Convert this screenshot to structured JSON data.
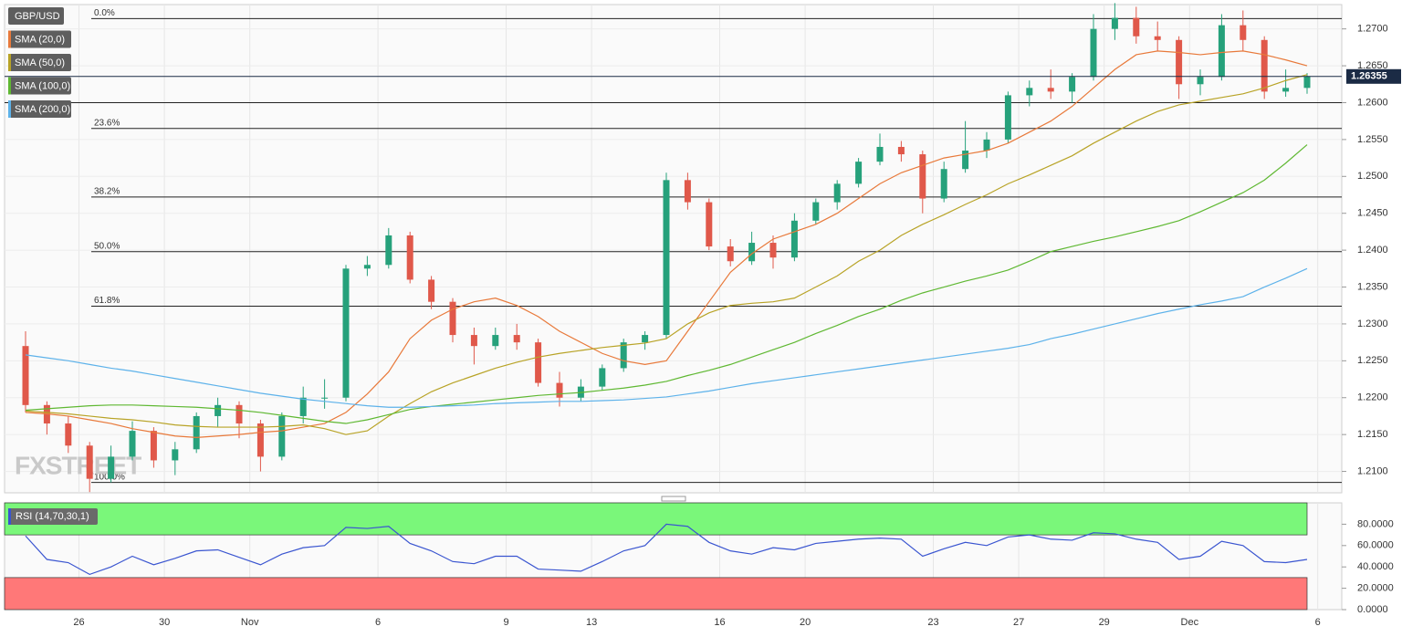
{
  "chart_data": [
    {
      "type": "candlestick",
      "title": "GBP/USD",
      "watermark": "FXSTREET",
      "categories": [
        null,
        null,
        null,
        "26",
        null,
        null,
        null,
        "30",
        null,
        null,
        null,
        "Nov",
        null,
        null,
        null,
        null,
        null,
        "6",
        null,
        null,
        null,
        null,
        null,
        "9",
        null,
        null,
        null,
        "13",
        null,
        null,
        null,
        null,
        null,
        "16",
        null,
        null,
        null,
        "20",
        null,
        null,
        null,
        null,
        null,
        "23",
        null,
        null,
        null,
        "27",
        null,
        null,
        null,
        "29",
        null,
        null,
        null,
        "Dec",
        null,
        null,
        null,
        null,
        null,
        "6"
      ],
      "open": [
        1.227,
        1.219,
        1.2165,
        1.2135,
        1.209,
        1.212,
        1.2155,
        1.2115,
        1.213,
        1.2175,
        1.219,
        1.2165,
        1.212,
        1.2175,
        1.22,
        1.22,
        1.2375,
        1.238,
        1.242,
        1.236,
        1.233,
        1.2285,
        1.227,
        1.2285,
        1.2275,
        1.222,
        1.22,
        1.2215,
        1.224,
        1.2275,
        1.2285,
        1.2495,
        1.2465,
        1.2405,
        1.2385,
        1.241,
        1.239,
        1.244,
        1.2465,
        1.249,
        1.252,
        1.254,
        1.253,
        1.247,
        1.251,
        1.2535,
        1.255,
        1.261,
        1.262,
        1.2615,
        1.2635,
        1.27,
        1.2715,
        1.269,
        1.2685,
        1.2625,
        1.2635,
        1.2705,
        1.2685,
        1.2615,
        1.262,
        null
      ],
      "high": [
        1.229,
        1.2195,
        1.2175,
        1.214,
        1.2135,
        1.2168,
        1.216,
        1.214,
        1.218,
        1.22,
        1.2195,
        1.217,
        1.218,
        1.2215,
        1.2225,
        1.238,
        1.2392,
        1.243,
        1.2425,
        1.2365,
        1.2335,
        1.2295,
        1.2295,
        1.23,
        1.228,
        1.2235,
        1.2225,
        1.2245,
        1.228,
        1.229,
        1.2505,
        1.2505,
        1.247,
        1.2415,
        1.2425,
        1.242,
        1.245,
        1.247,
        1.2495,
        1.2525,
        1.2558,
        1.2548,
        1.2535,
        1.252,
        1.2575,
        1.256,
        1.2615,
        1.263,
        1.2645,
        1.264,
        1.272,
        1.2735,
        1.273,
        1.271,
        1.269,
        1.2645,
        1.272,
        1.2725,
        1.269,
        1.2645,
        1.264,
        null
      ],
      "low": [
        1.218,
        1.215,
        1.2125,
        1.2072,
        1.2085,
        1.2115,
        1.2105,
        1.2095,
        1.2125,
        1.216,
        1.2145,
        1.21,
        1.2115,
        1.2165,
        1.2185,
        1.2195,
        1.2365,
        1.2375,
        1.2355,
        1.232,
        1.2275,
        1.2245,
        1.2265,
        1.2265,
        1.2215,
        1.2188,
        1.2195,
        1.221,
        1.2235,
        1.2265,
        1.228,
        1.2455,
        1.24,
        1.2378,
        1.238,
        1.2375,
        1.2385,
        1.2435,
        1.2455,
        1.2485,
        1.2515,
        1.252,
        1.245,
        1.2465,
        1.2505,
        1.2525,
        1.2545,
        1.2595,
        1.2605,
        1.26,
        1.263,
        1.2685,
        1.268,
        1.267,
        1.2605,
        1.261,
        1.263,
        1.267,
        1.2605,
        1.2608,
        1.2612,
        null
      ],
      "close": [
        1.219,
        1.2165,
        1.2135,
        1.209,
        1.212,
        1.2155,
        1.2115,
        1.213,
        1.2175,
        1.219,
        1.2165,
        1.212,
        1.2175,
        1.22,
        1.22,
        1.2375,
        1.238,
        1.242,
        1.236,
        1.233,
        1.2285,
        1.227,
        1.2285,
        1.2275,
        1.222,
        1.22,
        1.2215,
        1.224,
        1.2275,
        1.2285,
        1.2495,
        1.2465,
        1.2405,
        1.2385,
        1.241,
        1.239,
        1.244,
        1.2465,
        1.249,
        1.252,
        1.254,
        1.253,
        1.247,
        1.251,
        1.2535,
        1.255,
        1.261,
        1.262,
        1.2615,
        1.2635,
        1.27,
        1.2715,
        1.269,
        1.2685,
        1.2625,
        1.2635,
        1.2705,
        1.2685,
        1.2615,
        1.262,
        1.26355,
        null
      ],
      "up_color": "#26a17b",
      "down_color": "#e0584a",
      "series": [
        {
          "name": "SMA (20,0)",
          "color": "#e8793a",
          "values": [
            1.218,
            1.2178,
            1.2175,
            1.217,
            1.2165,
            1.2158,
            1.2153,
            1.2148,
            1.2146,
            1.2148,
            1.215,
            1.2153,
            1.2155,
            1.216,
            1.2165,
            1.218,
            1.2205,
            1.2235,
            1.228,
            1.2305,
            1.232,
            1.233,
            1.2335,
            1.2325,
            1.231,
            1.229,
            1.2275,
            1.226,
            1.225,
            1.2245,
            1.225,
            1.229,
            1.233,
            1.237,
            1.2395,
            1.2415,
            1.2425,
            1.2435,
            1.245,
            1.247,
            1.249,
            1.2505,
            1.2515,
            1.2525,
            1.253,
            1.2535,
            1.2545,
            1.256,
            1.2575,
            1.2595,
            1.262,
            1.2645,
            1.2665,
            1.267,
            1.2668,
            1.2665,
            1.2668,
            1.267,
            1.2665,
            1.2658,
            1.265,
            null
          ]
        },
        {
          "name": "SMA (50,0)",
          "color": "#b8a326",
          "values": [
            1.2182,
            1.218,
            1.2178,
            1.2175,
            1.2172,
            1.217,
            1.2167,
            1.2163,
            1.2161,
            1.216,
            1.216,
            1.216,
            1.2161,
            1.2163,
            1.2158,
            1.215,
            1.2155,
            1.2175,
            1.2192,
            1.2208,
            1.222,
            1.223,
            1.224,
            1.2248,
            1.2255,
            1.226,
            1.2264,
            1.2268,
            1.2271,
            1.2274,
            1.228,
            1.23,
            1.2315,
            1.2325,
            1.2328,
            1.233,
            1.2335,
            1.235,
            1.2365,
            1.2385,
            1.24,
            1.242,
            1.2435,
            1.2448,
            1.2462,
            1.2475,
            1.249,
            1.2502,
            1.2515,
            1.2528,
            1.2545,
            1.256,
            1.2575,
            1.2588,
            1.2597,
            1.2602,
            1.2607,
            1.2612,
            1.262,
            1.263,
            1.2638,
            null
          ]
        },
        {
          "name": "SMA (100,0)",
          "color": "#5fb832",
          "values": [
            1.2183,
            1.2185,
            1.2187,
            1.2189,
            1.219,
            1.219,
            1.2189,
            1.2188,
            1.2187,
            1.2185,
            1.2183,
            1.218,
            1.2176,
            1.2172,
            1.2168,
            1.2165,
            1.217,
            1.2177,
            1.2184,
            1.2188,
            1.2191,
            1.2194,
            1.2197,
            1.22,
            1.2203,
            1.2205,
            1.2207,
            1.221,
            1.2213,
            1.2217,
            1.2222,
            1.223,
            1.2237,
            1.2245,
            1.2255,
            1.2265,
            1.2275,
            1.2287,
            1.2298,
            1.231,
            1.232,
            1.2332,
            1.2342,
            1.235,
            1.2358,
            1.2365,
            1.2373,
            1.2385,
            1.2398,
            1.2405,
            1.2412,
            1.2418,
            1.2425,
            1.2432,
            1.244,
            1.2452,
            1.2465,
            1.2478,
            1.2495,
            1.2518,
            1.2543,
            null
          ]
        },
        {
          "name": "SMA (200,0)",
          "color": "#5db2ea",
          "values": [
            1.2258,
            1.2254,
            1.225,
            1.2245,
            1.224,
            1.2236,
            1.2231,
            1.2226,
            1.2221,
            1.2216,
            1.2211,
            1.2206,
            1.2202,
            1.2198,
            1.2195,
            1.2192,
            1.2189,
            1.2187,
            1.2187,
            1.2188,
            1.2189,
            1.219,
            1.2192,
            1.2193,
            1.2194,
            1.2195,
            1.2195,
            1.2196,
            1.2197,
            1.2199,
            1.2201,
            1.2205,
            1.2209,
            1.2214,
            1.2219,
            1.2223,
            1.2227,
            1.2231,
            1.2235,
            1.2239,
            1.2243,
            1.2247,
            1.2251,
            1.2255,
            1.2259,
            1.2263,
            1.2267,
            1.2272,
            1.228,
            1.2286,
            1.2293,
            1.23,
            1.2307,
            1.2314,
            1.232,
            1.2326,
            1.2331,
            1.2337,
            1.235,
            1.2362,
            1.2375,
            null
          ]
        }
      ],
      "fib_levels": [
        {
          "label": "0.0%",
          "value": 1.2714
        },
        {
          "label": "23.6%",
          "value": 1.2565
        },
        {
          "label": "38.2%",
          "value": 1.2472
        },
        {
          "label": "50.0%",
          "value": 1.2398
        },
        {
          "label": "61.8%",
          "value": 1.2324
        },
        {
          "label": "100.0%",
          "value": 1.2085
        }
      ],
      "levels": [
        1.26
      ],
      "last_price": 1.26355,
      "ylim": [
        1.2071,
        1.2733
      ],
      "yticks": [
        {
          "value": 1.21,
          "label": "1.2100"
        },
        {
          "value": 1.215,
          "label": "1.2150"
        },
        {
          "value": 1.22,
          "label": "1.2200"
        },
        {
          "value": 1.225,
          "label": "1.2250"
        },
        {
          "value": 1.23,
          "label": "1.2300"
        },
        {
          "value": 1.235,
          "label": "1.2350"
        },
        {
          "value": 1.24,
          "label": "1.2400"
        },
        {
          "value": 1.245,
          "label": "1.2450"
        },
        {
          "value": 1.25,
          "label": "1.2500"
        },
        {
          "value": 1.255,
          "label": "1.2550"
        },
        {
          "value": 1.26,
          "label": "1.2600"
        },
        {
          "value": 1.265,
          "label": "1.2650"
        },
        {
          "value": 1.27,
          "label": "1.2700"
        }
      ],
      "grid": true
    },
    {
      "type": "line",
      "title": "RSI (14,70,30,1)",
      "color": "#3a55d0",
      "values": [
        69,
        47,
        44,
        33,
        40,
        50,
        42,
        48,
        55,
        56,
        49,
        42,
        52,
        58,
        60,
        77,
        76,
        78,
        62,
        55,
        45,
        43,
        50,
        50,
        38,
        37,
        36,
        45,
        55,
        60,
        80,
        78,
        63,
        55,
        52,
        58,
        56,
        62,
        64,
        66,
        67,
        66,
        50,
        57,
        63,
        60,
        68,
        70,
        66,
        65,
        72,
        71,
        66,
        63,
        47,
        50,
        64,
        60,
        45,
        44,
        47,
        null
      ],
      "overbought": 70,
      "oversold": 30,
      "ylim": [
        0,
        100
      ],
      "yticks": [
        {
          "value": 0,
          "label": "0.0000"
        },
        {
          "value": 20,
          "label": "20.0000"
        },
        {
          "value": 40,
          "label": "40.0000"
        },
        {
          "value": 60,
          "label": "60.0000"
        },
        {
          "value": 80,
          "label": "80.0000"
        }
      ]
    }
  ]
}
